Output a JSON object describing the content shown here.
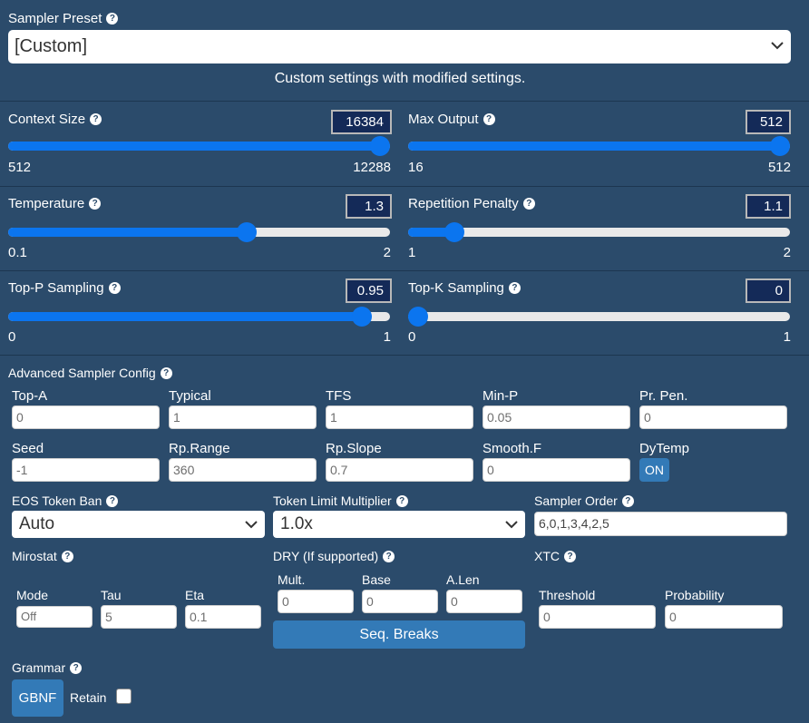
{
  "preset": {
    "label": "Sampler Preset",
    "value": "[Custom]",
    "description": "Custom settings with modified settings."
  },
  "sliders": {
    "context_size": {
      "label": "Context Size",
      "value": "16384",
      "min": "512",
      "max": "12288",
      "fill": 1.0
    },
    "max_output": {
      "label": "Max Output",
      "value": "512",
      "min": "16",
      "max": "512",
      "fill": 1.0
    },
    "temperature": {
      "label": "Temperature",
      "value": "1.3",
      "min": "0.1",
      "max": "2",
      "fill": 0.6316
    },
    "repetition_penalty": {
      "label": "Repetition Penalty",
      "value": "1.1",
      "min": "1",
      "max": "2",
      "fill": 0.1
    },
    "top_p": {
      "label": "Top-P Sampling",
      "value": "0.95",
      "min": "0",
      "max": "1",
      "fill": 0.95
    },
    "top_k": {
      "label": "Top-K Sampling",
      "value": "0",
      "min": "0",
      "max": "1",
      "fill": 0.0
    }
  },
  "advanced": {
    "label": "Advanced Sampler Config",
    "row1": [
      {
        "label": "Top-A",
        "value": "0"
      },
      {
        "label": "Typical",
        "value": "1"
      },
      {
        "label": "TFS",
        "value": "1"
      },
      {
        "label": "Min-P",
        "value": "0.05"
      },
      {
        "label": "Pr. Pen.",
        "value": "0"
      }
    ],
    "row2": [
      {
        "label": "Seed",
        "value": "-1"
      },
      {
        "label": "Rp.Range",
        "value": "360"
      },
      {
        "label": "Rp.Slope",
        "value": "0.7"
      },
      {
        "label": "Smooth.F",
        "value": "0"
      }
    ],
    "dytemp": {
      "label": "DyTemp",
      "button": "ON"
    }
  },
  "eos": {
    "label": "EOS Token Ban",
    "value": "Auto"
  },
  "token_limit": {
    "label": "Token Limit Multiplier",
    "value": "1.0x"
  },
  "sampler_order": {
    "label": "Sampler Order",
    "value": "6,0,1,3,4,2,5"
  },
  "mirostat": {
    "label": "Mirostat",
    "mode": {
      "label": "Mode",
      "value": "Off"
    },
    "tau": {
      "label": "Tau",
      "value": "5"
    },
    "eta": {
      "label": "Eta",
      "value": "0.1"
    }
  },
  "dry": {
    "label": "DRY (If supported)",
    "mult": {
      "label": "Mult.",
      "value": "0"
    },
    "base": {
      "label": "Base",
      "value": "0"
    },
    "alen": {
      "label": "A.Len",
      "value": "0"
    },
    "seq_breaks": "Seq. Breaks"
  },
  "xtc": {
    "label": "XTC",
    "threshold": {
      "label": "Threshold",
      "value": "0"
    },
    "probability": {
      "label": "Probability",
      "value": "0"
    }
  },
  "grammar": {
    "label": "Grammar",
    "button": "GBNF",
    "retain": "Retain"
  },
  "colors": {
    "background": "#2b4b6b",
    "accent": "#0b75ef",
    "button": "#337ab7",
    "numbox": "#142a58"
  }
}
